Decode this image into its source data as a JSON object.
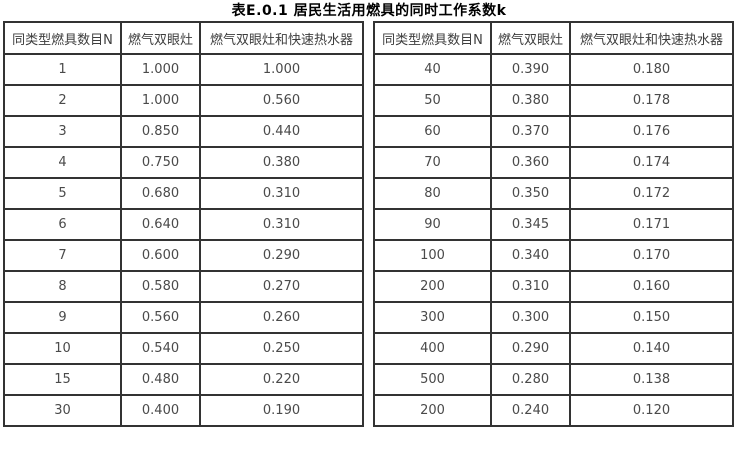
{
  "title": "表E.0.1 居民生活用燃具的同时工作系数k",
  "colors": {
    "background": "#ffffff",
    "border": "#333333",
    "cell_text": "#4a4a4a",
    "title_text": "#000000"
  },
  "columns": [
    "同类型燃具数目N",
    "燃气双眼灶",
    "燃气双眼灶和快速热水器"
  ],
  "left_table": {
    "rows": [
      [
        "1",
        "1.000",
        "1.000"
      ],
      [
        "2",
        "1.000",
        "0.560"
      ],
      [
        "3",
        "0.850",
        "0.440"
      ],
      [
        "4",
        "0.750",
        "0.380"
      ],
      [
        "5",
        "0.680",
        "0.310"
      ],
      [
        "6",
        "0.640",
        "0.310"
      ],
      [
        "7",
        "0.600",
        "0.290"
      ],
      [
        "8",
        "0.580",
        "0.270"
      ],
      [
        "9",
        "0.560",
        "0.260"
      ],
      [
        "10",
        "0.540",
        "0.250"
      ],
      [
        "15",
        "0.480",
        "0.220"
      ],
      [
        "30",
        "0.400",
        "0.190"
      ]
    ]
  },
  "right_table": {
    "rows": [
      [
        "40",
        "0.390",
        "0.180"
      ],
      [
        "50",
        "0.380",
        "0.178"
      ],
      [
        "60",
        "0.370",
        "0.176"
      ],
      [
        "70",
        "0.360",
        "0.174"
      ],
      [
        "80",
        "0.350",
        "0.172"
      ],
      [
        "90",
        "0.345",
        "0.171"
      ],
      [
        "100",
        "0.340",
        "0.170"
      ],
      [
        "200",
        "0.310",
        "0.160"
      ],
      [
        "300",
        "0.300",
        "0.150"
      ],
      [
        "400",
        "0.290",
        "0.140"
      ],
      [
        "500",
        "0.280",
        "0.138"
      ],
      [
        "200",
        "0.240",
        "0.120"
      ]
    ]
  }
}
